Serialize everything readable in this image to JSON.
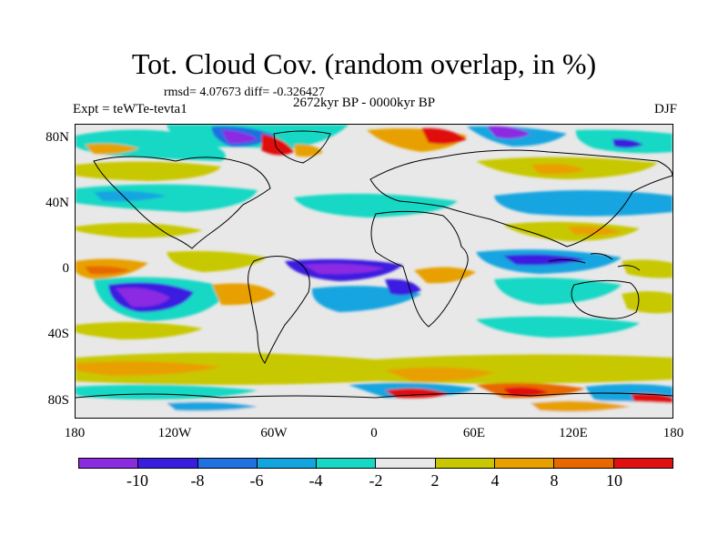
{
  "figure": {
    "title": "Tot. Cloud Cov. (random overlap, in %)",
    "stats": "rmsd= 4.07673 diff= -0.326427",
    "period": "2672kyr BP - 0000kyr BP",
    "experiment": "Expt = teWTe-tevta1",
    "season": "DJF"
  },
  "axes": {
    "lat_labels": [
      "80N",
      "40N",
      "0",
      "40S",
      "80S"
    ],
    "lon_labels": [
      "180",
      "120W",
      "60W",
      "0",
      "60E",
      "120E",
      "180"
    ]
  },
  "colorbar": {
    "labels": [
      "-10",
      "-8",
      "-6",
      "-4",
      "-2",
      "2",
      "4",
      "8",
      "10"
    ],
    "colors": [
      "#8b2be2",
      "#3a1ee0",
      "#1f70e0",
      "#12a5e0",
      "#16d8c4",
      "#e8e8e8",
      "#c8c800",
      "#e8a000",
      "#e86800",
      "#e01010"
    ]
  },
  "map": {
    "field": "Tot. Cloud Cov. difference",
    "projection": "cylindrical equidistant",
    "lon_range": [
      -180,
      180
    ],
    "lat_range": [
      -90,
      90
    ],
    "coastline_color": "#000000"
  }
}
